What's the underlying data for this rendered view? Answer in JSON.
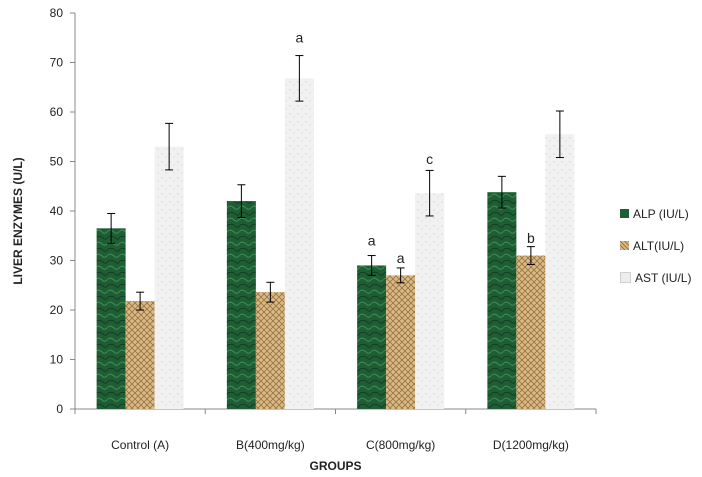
{
  "chart_data": {
    "type": "bar",
    "title": "",
    "xlabel": "GROUPS",
    "ylabel": "LIVER ENZYMES  (U/L)",
    "ylim": [
      0,
      80
    ],
    "yticks": [
      "0",
      "10",
      "20",
      "30",
      "40",
      "50",
      "60",
      "70",
      "80"
    ],
    "categories": [
      "Control (A)",
      "B(400mg/kg)",
      "C(800mg/kg)",
      "D(1200mg/kg)"
    ],
    "series": [
      {
        "name": "ALP (IU/L)",
        "color": "#1f5e34",
        "values": [
          36.5,
          42,
          29,
          43.8
        ],
        "errors": [
          3,
          3.3,
          2,
          3.2
        ]
      },
      {
        "name": "ALT(IU/L)",
        "color": "#c9a56d",
        "values": [
          21.8,
          23.6,
          27,
          31
        ],
        "errors": [
          1.8,
          2,
          1.5,
          1.8
        ]
      },
      {
        "name": "AST (IU/L)",
        "color": "#ededed",
        "values": [
          53,
          66.8,
          43.6,
          55.5
        ],
        "errors": [
          4.7,
          4.6,
          4.6,
          4.7
        ]
      }
    ],
    "annotations": [
      {
        "text": "a",
        "category": 1,
        "series": 2,
        "value": 74
      },
      {
        "text": "a",
        "category": 2,
        "series": 0,
        "value": 33
      },
      {
        "text": "a",
        "category": 2,
        "series": 1,
        "value": 29.5
      },
      {
        "text": "c",
        "category": 2,
        "series": 2,
        "value": 49.5
      },
      {
        "text": "b",
        "category": 3,
        "series": 1,
        "value": 33.5
      }
    ],
    "grid": false,
    "legend": "right"
  }
}
